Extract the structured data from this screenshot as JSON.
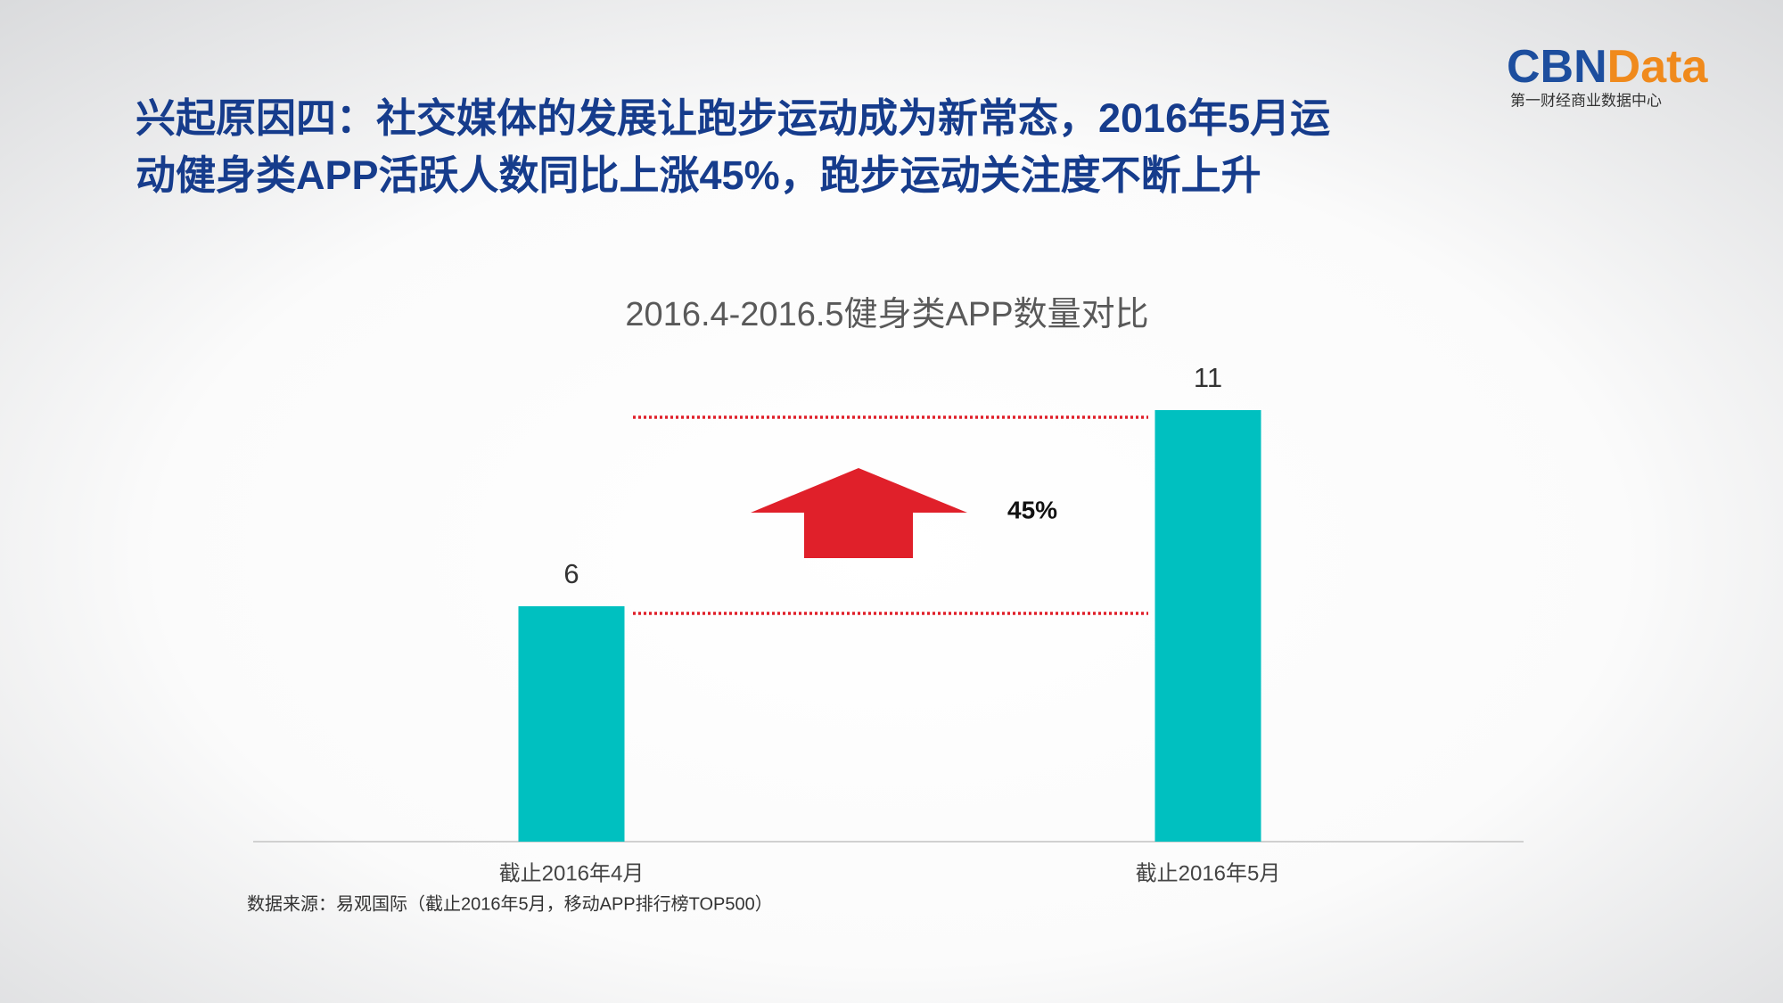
{
  "header": {
    "title_lines": [
      "兴起原因四：社交媒体的发展让跑步运动成为新常态，2016年5月运",
      "动健身类APP活跃人数同比上涨45%，跑步运动关注度不断上升"
    ]
  },
  "logo": {
    "brand_a": "CBN",
    "brand_b": "Data",
    "tagline": "第一财经商业数据中心"
  },
  "chart_data": {
    "type": "bar",
    "title": "2016.4-2016.5健身类APP数量对比",
    "categories": [
      "截止2016年4月",
      "截止2016年5月"
    ],
    "values": [
      6,
      11
    ],
    "color": "#00c0c0",
    "annotation": "45%",
    "reference_line_color": "#e0202a"
  },
  "source": "数据来源：易观国际（截止2016年5月，移动APP排行榜TOP500）"
}
